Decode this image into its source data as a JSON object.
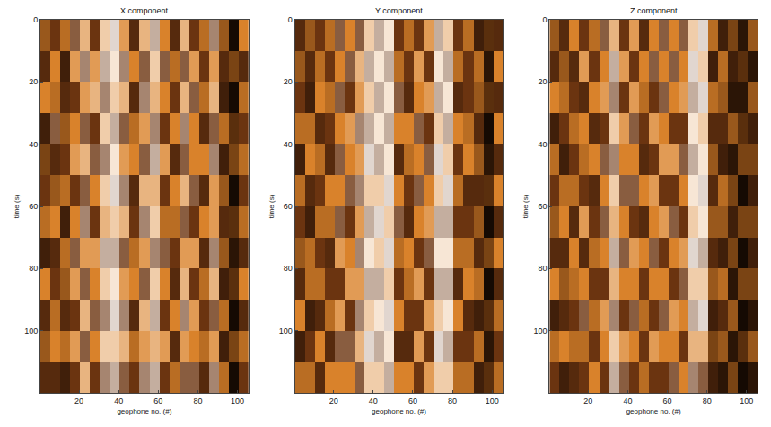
{
  "chart_data": [
    {
      "type": "heatmap",
      "title": "X component",
      "x_label": "geophone no. (#)",
      "y_label": "time (s)",
      "x": [
        3,
        8,
        13,
        18,
        23,
        28,
        33,
        38,
        43,
        48,
        53,
        58,
        63,
        68,
        73,
        78,
        83,
        88,
        93,
        98,
        103
      ],
      "y": [
        5,
        15,
        25,
        35,
        45,
        55,
        65,
        75,
        85,
        95,
        105,
        115
      ],
      "z": [
        [
          0.7,
          -0.5,
          0.6,
          -0.4,
          0.3,
          -0.5,
          0.2,
          -0.1,
          0.4,
          -0.6,
          0.3,
          -0.2,
          0.5,
          -0.6,
          0.3,
          -0.5,
          0.6,
          -0.3,
          0.7,
          -0.9,
          0.5
        ],
        [
          -0.6,
          0.5,
          -0.7,
          0.4,
          -0.3,
          0.4,
          -0.2,
          0.1,
          -0.3,
          0.5,
          -0.4,
          0.2,
          -0.4,
          0.6,
          -0.4,
          0.4,
          -0.5,
          0.4,
          -0.6,
          0.8,
          -0.6
        ],
        [
          0.5,
          0.6,
          -0.6,
          -0.5,
          0.4,
          0.3,
          -0.3,
          0.2,
          0.3,
          -0.6,
          -0.3,
          0.3,
          0.5,
          -0.5,
          0.3,
          -0.4,
          0.6,
          0.3,
          -0.7,
          -0.9,
          0.6
        ],
        [
          -0.7,
          -0.4,
          0.7,
          0.5,
          -0.4,
          -0.5,
          0.2,
          -0.2,
          -0.4,
          0.6,
          0.4,
          -0.3,
          -0.5,
          0.5,
          -0.3,
          0.5,
          -0.6,
          -0.4,
          0.6,
          0.9,
          -0.5
        ],
        [
          0.8,
          -0.6,
          -0.5,
          0.4,
          0.3,
          -0.4,
          -0.3,
          0.1,
          0.4,
          0.5,
          -0.4,
          -0.2,
          0.4,
          -0.6,
          -0.4,
          0.5,
          0.5,
          -0.3,
          -0.7,
          0.8,
          0.6
        ],
        [
          -0.5,
          0.7,
          0.6,
          -0.5,
          -0.4,
          0.5,
          0.2,
          -0.1,
          -0.3,
          -0.6,
          0.3,
          0.3,
          -0.5,
          0.5,
          0.3,
          -0.4,
          -0.6,
          0.4,
          0.7,
          -0.9,
          -0.5
        ],
        [
          0.6,
          0.5,
          -0.7,
          0.5,
          -0.3,
          -0.5,
          0.3,
          0.2,
          0.3,
          -0.5,
          -0.3,
          0.2,
          0.6,
          0.6,
          -0.4,
          -0.5,
          0.5,
          0.4,
          -0.6,
          0.9,
          0.6
        ],
        [
          -0.7,
          -0.6,
          0.6,
          -0.4,
          0.4,
          0.4,
          -0.2,
          -0.2,
          -0.4,
          0.6,
          0.4,
          -0.3,
          -0.4,
          -0.5,
          0.4,
          0.4,
          -0.6,
          -0.3,
          0.7,
          -0.8,
          -0.6
        ],
        [
          0.5,
          -0.5,
          0.7,
          0.4,
          -0.4,
          0.5,
          0.2,
          0.1,
          0.4,
          0.5,
          -0.4,
          0.2,
          0.5,
          -0.6,
          0.3,
          -0.5,
          0.6,
          0.3,
          -0.7,
          0.9,
          0.5
        ],
        [
          -0.6,
          0.6,
          -0.6,
          -0.5,
          0.3,
          -0.4,
          -0.3,
          -0.1,
          -0.3,
          -0.6,
          0.3,
          -0.2,
          -0.5,
          0.5,
          -0.3,
          0.4,
          -0.5,
          -0.4,
          0.6,
          -0.9,
          -0.6
        ],
        [
          0.7,
          0.5,
          0.6,
          0.4,
          -0.4,
          0.5,
          0.2,
          0.2,
          0.3,
          0.6,
          0.4,
          0.3,
          0.4,
          -0.6,
          0.4,
          0.5,
          0.6,
          0.4,
          -0.7,
          0.8,
          0.6
        ],
        [
          -0.6,
          -0.6,
          -0.7,
          -0.5,
          0.3,
          -0.5,
          -0.3,
          -0.2,
          -0.4,
          -0.5,
          -0.3,
          -0.2,
          -0.5,
          0.6,
          -0.4,
          -0.4,
          -0.6,
          -0.3,
          0.6,
          -0.9,
          -0.5
        ]
      ],
      "zlim": [
        -1,
        1
      ],
      "xlim": [
        0.5,
        105.5
      ],
      "ylim": [
        0,
        120
      ],
      "xticks": [
        20,
        40,
        60,
        80,
        100
      ],
      "yticks": [
        0,
        20,
        40,
        60,
        80,
        100
      ]
    },
    {
      "type": "heatmap",
      "title": "Y component",
      "x_label": "geophone no. (#)",
      "y_label": "time (s)",
      "x": [
        3,
        8,
        13,
        18,
        23,
        28,
        33,
        38,
        43,
        48,
        53,
        58,
        63,
        68,
        73,
        78,
        83,
        88,
        93,
        98,
        103
      ],
      "y": [
        5,
        15,
        25,
        35,
        45,
        55,
        65,
        75,
        85,
        95,
        105,
        115
      ],
      "z": [
        [
          -0.6,
          0.7,
          -0.5,
          0.6,
          -0.4,
          0.5,
          -0.4,
          0.2,
          -0.2,
          0.1,
          -0.5,
          0.6,
          -0.5,
          0.4,
          -0.2,
          0.2,
          -0.5,
          0.6,
          -0.7,
          0.9,
          -0.6
        ],
        [
          0.7,
          -0.6,
          0.6,
          -0.5,
          0.5,
          -0.4,
          0.3,
          -0.2,
          0.1,
          -0.2,
          0.6,
          -0.5,
          0.4,
          -0.5,
          0.1,
          -0.2,
          0.6,
          -0.5,
          0.6,
          -0.8,
          0.5
        ],
        [
          -0.5,
          -0.7,
          0.5,
          0.6,
          -0.4,
          -0.5,
          0.4,
          0.2,
          -0.2,
          0.1,
          -0.4,
          -0.6,
          0.5,
          0.4,
          -0.2,
          0.1,
          -0.6,
          -0.5,
          0.7,
          0.9,
          -0.6
        ],
        [
          0.6,
          0.6,
          -0.6,
          -0.5,
          0.5,
          0.4,
          -0.3,
          -0.2,
          0.1,
          -0.2,
          0.5,
          0.5,
          -0.4,
          -0.5,
          0.2,
          -0.2,
          0.5,
          0.6,
          -0.6,
          -0.9,
          0.5
        ],
        [
          -0.7,
          0.5,
          0.6,
          -0.6,
          -0.4,
          0.5,
          0.4,
          -0.1,
          -0.2,
          0.1,
          -0.6,
          0.6,
          0.5,
          -0.4,
          -0.1,
          0.2,
          -0.5,
          0.5,
          0.7,
          -0.8,
          -0.6
        ],
        [
          0.6,
          -0.6,
          -0.5,
          0.5,
          0.5,
          -0.4,
          -0.3,
          0.2,
          0.2,
          -0.1,
          0.5,
          -0.5,
          -0.4,
          0.5,
          0.2,
          -0.1,
          0.6,
          -0.6,
          -0.6,
          0.9,
          0.5
        ],
        [
          -0.5,
          -0.7,
          0.6,
          0.6,
          -0.4,
          -0.5,
          0.4,
          -0.2,
          -0.1,
          0.2,
          -0.4,
          -0.6,
          0.5,
          0.4,
          -0.2,
          -0.2,
          -0.5,
          -0.5,
          0.7,
          -0.9,
          -0.6
        ],
        [
          0.7,
          0.6,
          -0.5,
          -0.6,
          0.4,
          0.5,
          -0.3,
          0.1,
          0.2,
          -0.1,
          0.6,
          0.5,
          -0.5,
          -0.4,
          0.1,
          0.1,
          0.6,
          0.6,
          -0.6,
          0.8,
          0.5
        ],
        [
          -0.6,
          0.6,
          0.6,
          -0.5,
          -0.5,
          0.4,
          0.4,
          -0.2,
          -0.2,
          0.2,
          -0.5,
          0.6,
          0.4,
          -0.5,
          -0.2,
          -0.2,
          -0.6,
          0.5,
          0.6,
          -0.9,
          -0.6
        ],
        [
          0.5,
          -0.7,
          -0.6,
          0.6,
          0.4,
          -0.5,
          -0.3,
          0.2,
          0.1,
          -0.1,
          0.5,
          -0.5,
          -0.5,
          0.4,
          0.2,
          0.1,
          0.5,
          -0.6,
          -0.7,
          0.9,
          0.6
        ],
        [
          -0.7,
          -0.5,
          0.5,
          -0.6,
          -0.4,
          -0.4,
          0.3,
          -0.1,
          -0.2,
          0.1,
          -0.6,
          -0.6,
          0.4,
          -0.5,
          -0.1,
          -0.2,
          -0.5,
          -0.5,
          0.6,
          -0.8,
          -0.5
        ],
        [
          0.6,
          0.6,
          -0.6,
          0.5,
          0.5,
          0.5,
          -0.4,
          0.2,
          0.2,
          -0.2,
          0.5,
          0.5,
          -0.5,
          0.4,
          0.2,
          0.2,
          0.6,
          0.6,
          -0.7,
          0.9,
          0.6
        ]
      ],
      "zlim": [
        -1,
        1
      ],
      "xlim": [
        0.5,
        105.5
      ],
      "ylim": [
        0,
        120
      ],
      "xticks": [
        20,
        40,
        60,
        80,
        100
      ],
      "yticks": [
        0,
        20,
        40,
        60,
        80,
        100
      ]
    },
    {
      "type": "heatmap",
      "title": "Z component",
      "x_label": "geophone no. (#)",
      "y_label": "time (s)",
      "x": [
        3,
        8,
        13,
        18,
        23,
        28,
        33,
        38,
        43,
        48,
        53,
        58,
        63,
        68,
        73,
        78,
        83,
        88,
        93,
        98,
        103
      ],
      "y": [
        5,
        15,
        25,
        35,
        45,
        55,
        65,
        75,
        85,
        95,
        105,
        115
      ],
      "z": [
        [
          0.7,
          -0.6,
          0.5,
          -0.5,
          0.6,
          -0.4,
          0.3,
          -0.5,
          0.4,
          -0.6,
          0.5,
          -0.4,
          0.5,
          -0.4,
          0.2,
          -0.1,
          0.6,
          -0.7,
          0.8,
          -0.8,
          0.7
        ],
        [
          -0.6,
          0.7,
          -0.6,
          0.4,
          -0.5,
          0.5,
          -0.2,
          0.4,
          -0.5,
          0.5,
          -0.4,
          0.5,
          -0.4,
          0.5,
          -0.1,
          0.2,
          -0.7,
          0.6,
          -0.7,
          0.9,
          -0.8
        ],
        [
          0.5,
          0.6,
          -0.5,
          -0.6,
          0.5,
          0.4,
          -0.3,
          -0.5,
          0.4,
          0.6,
          -0.5,
          -0.4,
          0.5,
          0.4,
          -0.2,
          -0.1,
          0.6,
          0.7,
          -0.8,
          -0.8,
          0.7
        ],
        [
          -0.7,
          -0.5,
          0.6,
          0.5,
          -0.6,
          -0.5,
          0.2,
          0.4,
          -0.4,
          -0.5,
          0.4,
          0.5,
          -0.5,
          -0.5,
          0.1,
          0.2,
          -0.6,
          -0.6,
          0.7,
          0.9,
          -0.7
        ],
        [
          0.6,
          -0.7,
          -0.5,
          0.6,
          0.5,
          -0.4,
          -0.3,
          0.5,
          0.5,
          -0.6,
          -0.5,
          0.4,
          0.4,
          -0.4,
          -0.2,
          0.1,
          0.7,
          -0.7,
          -0.8,
          0.8,
          0.8
        ],
        [
          -0.5,
          0.6,
          0.6,
          -0.5,
          -0.6,
          0.5,
          0.2,
          -0.4,
          -0.4,
          0.5,
          0.4,
          -0.5,
          -0.5,
          0.5,
          0.1,
          -0.1,
          -0.6,
          0.6,
          0.8,
          -0.9,
          -0.7
        ],
        [
          0.7,
          0.5,
          -0.6,
          0.4,
          -0.5,
          -0.4,
          0.3,
          0.5,
          -0.5,
          -0.6,
          0.5,
          0.4,
          -0.4,
          -0.5,
          0.2,
          0.1,
          0.7,
          0.7,
          -0.7,
          0.8,
          0.8
        ],
        [
          -0.6,
          -0.6,
          0.5,
          -0.6,
          0.6,
          0.5,
          -0.2,
          -0.4,
          0.4,
          0.5,
          -0.4,
          -0.5,
          0.5,
          0.4,
          -0.1,
          -0.2,
          -0.6,
          -0.7,
          0.8,
          -0.9,
          -0.7
        ],
        [
          0.5,
          0.7,
          0.6,
          0.5,
          -0.5,
          -0.5,
          0.3,
          0.5,
          0.5,
          -0.5,
          0.5,
          0.5,
          -0.5,
          -0.4,
          0.2,
          0.2,
          0.7,
          0.6,
          -0.8,
          0.8,
          0.8
        ],
        [
          -0.7,
          -0.6,
          -0.5,
          -0.4,
          0.6,
          0.4,
          -0.3,
          -0.5,
          -0.4,
          0.6,
          -0.5,
          -0.4,
          0.4,
          0.5,
          -0.2,
          -0.1,
          -0.7,
          -0.6,
          0.7,
          -0.9,
          -0.8
        ],
        [
          0.6,
          0.5,
          0.6,
          0.6,
          -0.5,
          0.5,
          0.2,
          0.4,
          0.5,
          -0.5,
          0.4,
          0.5,
          0.5,
          -0.5,
          0.3,
          0.3,
          0.8,
          0.7,
          -0.8,
          0.9,
          0.7
        ],
        [
          -0.5,
          -0.7,
          -0.6,
          -0.5,
          0.5,
          -0.5,
          -0.2,
          -0.4,
          -0.5,
          0.6,
          -0.5,
          -0.5,
          -0.4,
          0.5,
          -0.3,
          -0.4,
          -0.7,
          -0.8,
          0.8,
          -0.9,
          -0.8
        ]
      ],
      "zlim": [
        -1,
        1
      ],
      "xlim": [
        0.5,
        105.5
      ],
      "ylim": [
        0,
        120
      ],
      "xticks": [
        20,
        40,
        60,
        80,
        100
      ],
      "yticks": [
        0,
        20,
        40,
        60,
        80,
        100
      ]
    }
  ]
}
